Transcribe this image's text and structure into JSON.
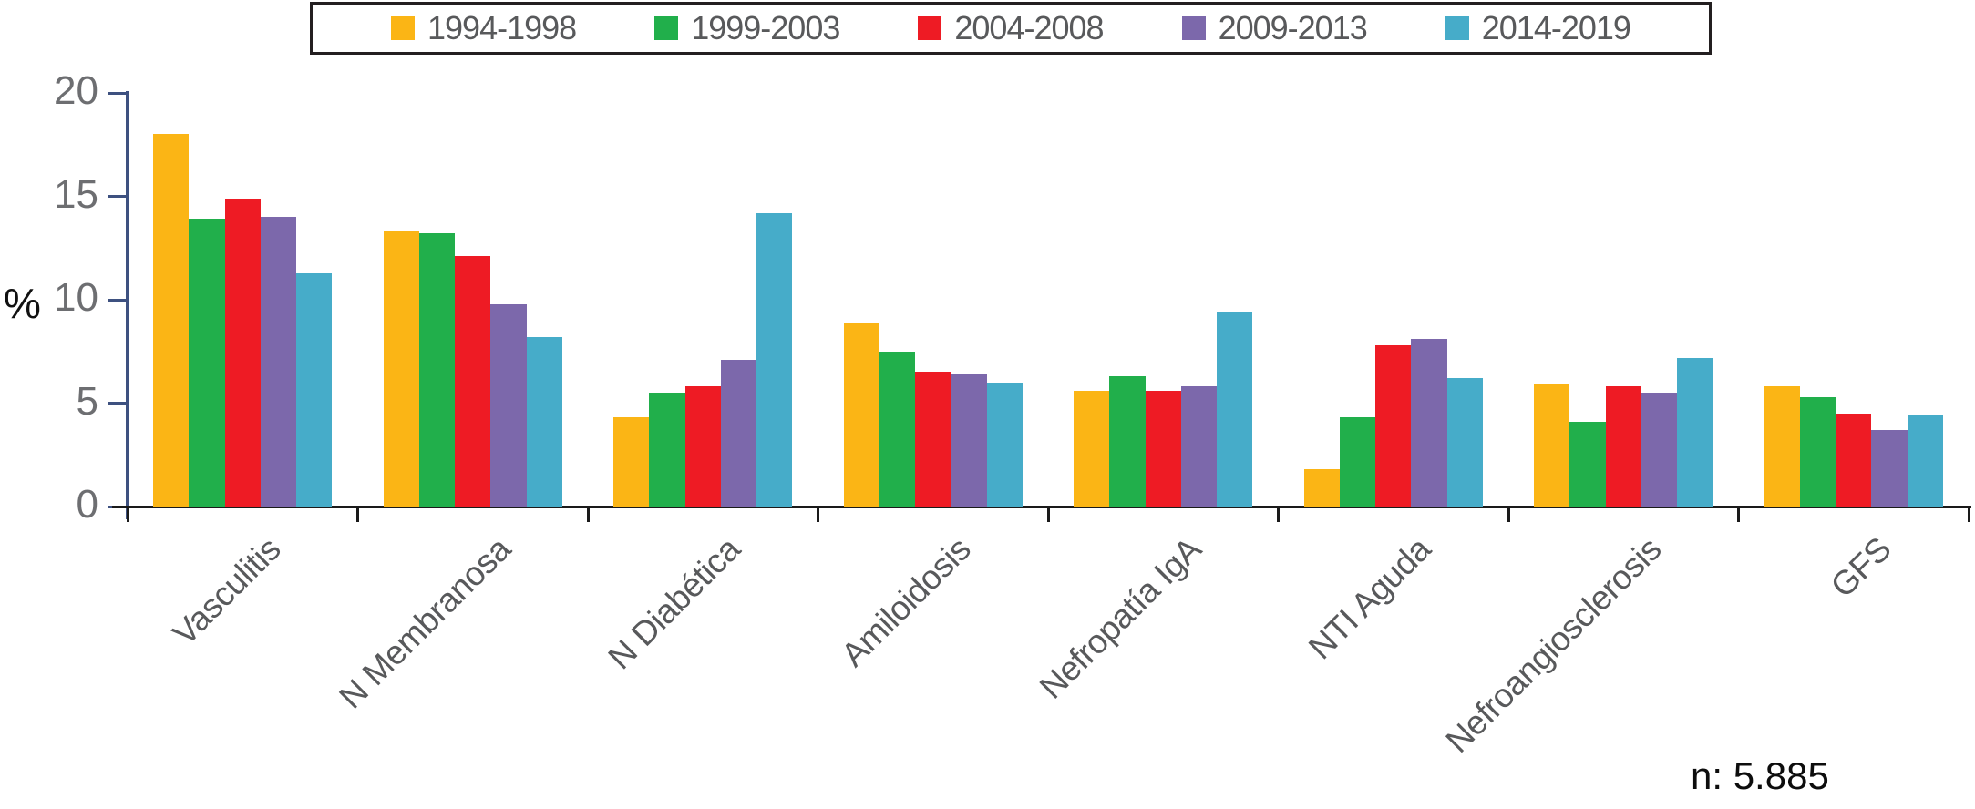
{
  "chart_data": {
    "type": "bar",
    "title": "",
    "categories": [
      "Vasculitis",
      "N Membranosa",
      "N Diabética",
      "Amiloidosis",
      "Nefropatía IgA",
      "NTI Aguda",
      "Nefroangiosclerosis",
      "GFS"
    ],
    "series": [
      {
        "name": "1994-1998",
        "color": "#FBB515",
        "values": [
          18.0,
          13.3,
          4.3,
          8.9,
          5.6,
          1.8,
          5.9,
          5.8
        ]
      },
      {
        "name": "1999-2003",
        "color": "#21AF4B",
        "values": [
          13.9,
          13.2,
          5.5,
          7.5,
          6.3,
          4.3,
          4.1,
          5.3
        ]
      },
      {
        "name": "2004-2008",
        "color": "#EE1B24",
        "values": [
          14.9,
          12.1,
          5.8,
          6.5,
          5.6,
          7.8,
          5.8,
          4.5
        ]
      },
      {
        "name": "2009-2013",
        "color": "#7C68AB",
        "values": [
          14.0,
          9.8,
          7.1,
          6.4,
          5.8,
          8.1,
          5.5,
          3.7
        ]
      },
      {
        "name": "2014-2019",
        "color": "#46ACC9",
        "values": [
          11.3,
          8.2,
          14.2,
          6.0,
          9.4,
          6.2,
          7.2,
          4.4
        ]
      }
    ],
    "xlabel": "",
    "ylabel": "%",
    "ylim": [
      0,
      20
    ],
    "yticks": [
      0,
      5,
      10,
      15,
      20
    ],
    "grid": false,
    "legend_position": "top",
    "note": "n: 5.885",
    "colors": {
      "y_axis": "#3E5180",
      "x_axis": "#1A1A1A",
      "tick_label_text": "#6D6E71",
      "category_label_text": "#58595B",
      "legend_border": "#231F20",
      "note_text": "#0D0D0D"
    }
  }
}
